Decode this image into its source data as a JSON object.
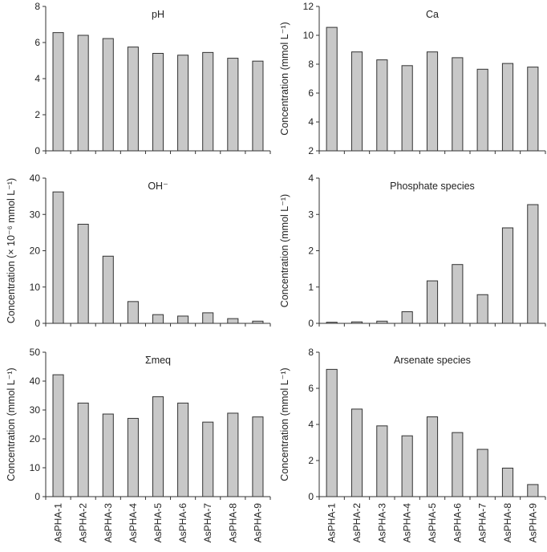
{
  "categories": [
    "AsPHA-1",
    "AsPHA-2",
    "AsPHA-3",
    "AsPHA-4",
    "AsPHA-5",
    "AsPHA-6",
    "AsPHA-7",
    "AsPHA-8",
    "AsPHA-9"
  ],
  "bar_color": "#c8c8c8",
  "chart_data": [
    {
      "type": "bar",
      "title": "pH",
      "ylabel": "",
      "ylim": [
        0,
        8
      ],
      "yticks": [
        0,
        2,
        4,
        6,
        8
      ],
      "categories": [
        "AsPHA-1",
        "AsPHA-2",
        "AsPHA-3",
        "AsPHA-4",
        "AsPHA-5",
        "AsPHA-6",
        "AsPHA-7",
        "AsPHA-8",
        "AsPHA-9"
      ],
      "values": [
        6.55,
        6.4,
        6.22,
        5.75,
        5.4,
        5.3,
        5.45,
        5.13,
        4.97
      ]
    },
    {
      "type": "bar",
      "title": "Ca",
      "ylabel": "Concentration (mmol L⁻¹)",
      "ylim": [
        2,
        12
      ],
      "yticks": [
        2,
        4,
        6,
        8,
        10,
        12
      ],
      "categories": [
        "AsPHA-1",
        "AsPHA-2",
        "AsPHA-3",
        "AsPHA-4",
        "AsPHA-5",
        "AsPHA-6",
        "AsPHA-7",
        "AsPHA-8",
        "AsPHA-9"
      ],
      "values": [
        10.55,
        8.85,
        8.3,
        7.9,
        8.85,
        8.45,
        7.65,
        8.05,
        7.8
      ]
    },
    {
      "type": "bar",
      "title": "OH⁻",
      "ylabel": "Concentration (× 10⁻⁶ mmol L⁻¹)",
      "ylim": [
        0,
        40
      ],
      "yticks": [
        0,
        10,
        20,
        30,
        40
      ],
      "categories": [
        "AsPHA-1",
        "AsPHA-2",
        "AsPHA-3",
        "AsPHA-4",
        "AsPHA-5",
        "AsPHA-6",
        "AsPHA-7",
        "AsPHA-8",
        "AsPHA-9"
      ],
      "values": [
        36.2,
        27.3,
        18.5,
        6.0,
        2.4,
        2.0,
        2.9,
        1.3,
        0.6
      ]
    },
    {
      "type": "bar",
      "title": "Phosphate species",
      "ylabel": "Concentration (mmol L⁻¹)",
      "ylim": [
        0,
        4
      ],
      "yticks": [
        0,
        1,
        2,
        3,
        4
      ],
      "categories": [
        "AsPHA-1",
        "AsPHA-2",
        "AsPHA-3",
        "AsPHA-4",
        "AsPHA-5",
        "AsPHA-6",
        "AsPHA-7",
        "AsPHA-8",
        "AsPHA-9"
      ],
      "values": [
        0.03,
        0.04,
        0.06,
        0.32,
        1.17,
        1.62,
        0.79,
        2.63,
        3.27
      ]
    },
    {
      "type": "bar",
      "title": "Σmeq",
      "ylabel": "Concentration (mmol L⁻¹)",
      "ylim": [
        0,
        50
      ],
      "yticks": [
        0,
        10,
        20,
        30,
        40,
        50
      ],
      "categories": [
        "AsPHA-1",
        "AsPHA-2",
        "AsPHA-3",
        "AsPHA-4",
        "AsPHA-5",
        "AsPHA-6",
        "AsPHA-7",
        "AsPHA-8",
        "AsPHA-9"
      ],
      "values": [
        42.2,
        32.4,
        28.6,
        27.1,
        34.6,
        32.4,
        25.8,
        28.9,
        27.6
      ]
    },
    {
      "type": "bar",
      "title": "Arsenate species",
      "ylabel": "Concentration (mmol L⁻¹)",
      "ylim": [
        0,
        8
      ],
      "yticks": [
        0,
        2,
        4,
        6,
        8
      ],
      "categories": [
        "AsPHA-1",
        "AsPHA-2",
        "AsPHA-3",
        "AsPHA-4",
        "AsPHA-5",
        "AsPHA-6",
        "AsPHA-7",
        "AsPHA-8",
        "AsPHA-9"
      ],
      "values": [
        7.05,
        4.85,
        3.92,
        3.37,
        4.42,
        3.55,
        2.62,
        1.58,
        0.67
      ]
    }
  ]
}
